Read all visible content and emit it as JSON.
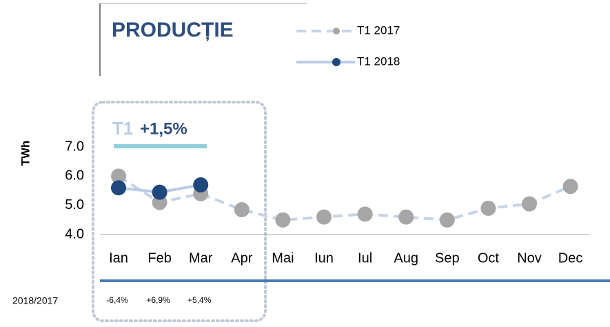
{
  "chart_data": {
    "type": "line",
    "title": "PRODUCȚIE",
    "y_label": "TWh",
    "annotation": {
      "label": "T1",
      "value": "+1,5%"
    },
    "categories": [
      "Ian",
      "Feb",
      "Mar",
      "Apr",
      "Mai",
      "Iun",
      "Iul",
      "Aug",
      "Sep",
      "Oct",
      "Nov",
      "Dec"
    ],
    "series": [
      {
        "name": "T1 2017",
        "color": "#a6a6a6",
        "line_color": "#c5d3e6",
        "dashed": true,
        "values": [
          6.0,
          5.1,
          5.4,
          4.85,
          4.5,
          4.6,
          4.7,
          4.6,
          4.5,
          4.9,
          5.05,
          5.65
        ]
      },
      {
        "name": "T1 2018",
        "color": "#1f497d",
        "line_color": "#b8cce4",
        "dashed": false,
        "values": [
          5.6,
          5.45,
          5.7,
          null,
          null,
          null,
          null,
          null,
          null,
          null,
          null,
          null
        ]
      }
    ],
    "ylim": [
      4,
      7
    ],
    "yticks": [
      {
        "value": 4,
        "label": "4.0"
      },
      {
        "value": 5,
        "label": "5.0"
      },
      {
        "value": 6,
        "label": "6.0"
      },
      {
        "value": 7,
        "label": "7.0"
      }
    ],
    "change_label": "2018/2017",
    "changes": [
      "-6,4%",
      "+6,9%",
      "+5,4%"
    ]
  }
}
